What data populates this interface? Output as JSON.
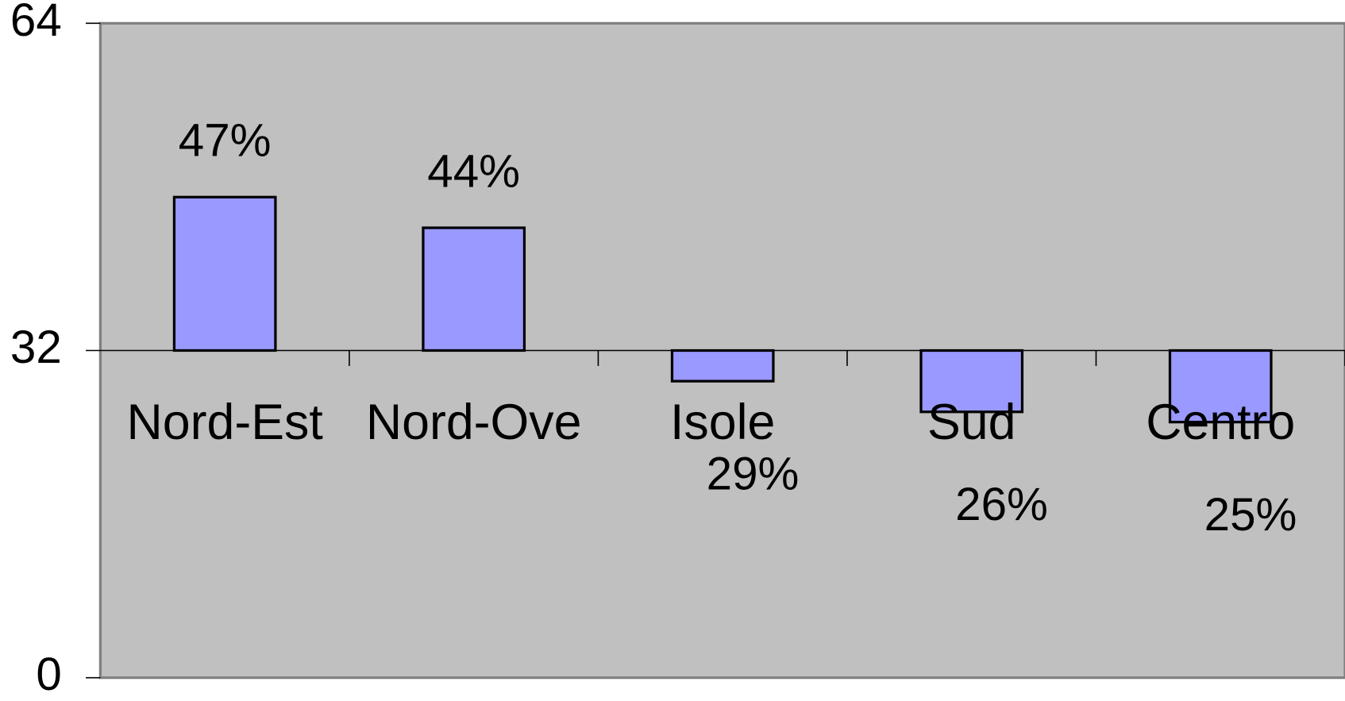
{
  "chart_data": {
    "type": "bar",
    "categories": [
      "Nord-Est",
      "Nord-Ove",
      "Isole",
      "Sud",
      "Centro"
    ],
    "values": [
      47,
      44,
      29,
      26,
      25
    ],
    "value_labels": [
      "47%",
      "44%",
      "29%",
      "26%",
      "25%"
    ],
    "color": "#9999ff",
    "baseline": 32,
    "ylim": [
      0,
      64
    ],
    "yticks": [
      0,
      32,
      64
    ],
    "grid": false
  }
}
